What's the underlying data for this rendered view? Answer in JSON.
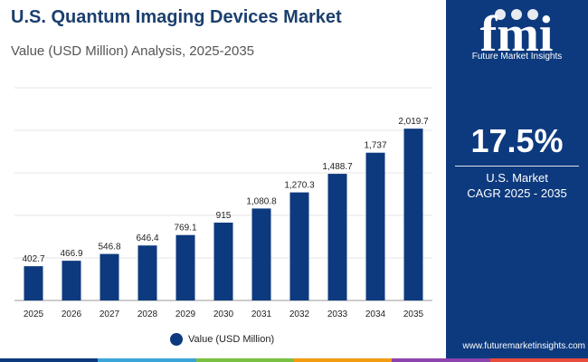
{
  "header": {
    "title": "U.S. Quantum Imaging Devices Market",
    "subtitle": "Value (USD Million) Analysis, 2025-2035"
  },
  "chart_data": {
    "type": "bar",
    "categories": [
      "2025",
      "2026",
      "2027",
      "2028",
      "2029",
      "2030",
      "2031",
      "2032",
      "2033",
      "2034",
      "2035"
    ],
    "series": [
      {
        "name": "Value (USD Million)",
        "values": [
          402.7,
          466.9,
          546.8,
          646.4,
          769.1,
          915,
          1080.8,
          1270.3,
          1488.7,
          1737,
          2019.7
        ],
        "labels": [
          "402.7",
          "466.9",
          "546.8",
          "646.4",
          "769.1",
          "915",
          "1,080.8",
          "1,270.3",
          "1,488.7",
          "1,737",
          "2,019.7"
        ]
      }
    ],
    "ylim": [
      0,
      2500
    ],
    "grid": true,
    "legend_position": "bottom-center",
    "bar_color": "#0d3a7e"
  },
  "legend": {
    "label": "Value (USD Million)"
  },
  "sidebar": {
    "logo_text": "fmi",
    "brand_name": "Future Market Insights",
    "cagr_value": "17.5%",
    "cagr_label_line1": "U.S. Market",
    "cagr_label_line2": "CAGR 2025 - 2035",
    "website": "www.futuremarketinsights.com"
  },
  "colors": {
    "title": "#1b3f6e",
    "panel_bg": "#0d3a7e",
    "bar": "#0d3a7e",
    "gridline": "#e6e6e6",
    "stripe": [
      "#0d3a7e",
      "#3aa5d8",
      "#7ac143",
      "#f39c12",
      "#8e44ad",
      "#e74c3c"
    ]
  }
}
